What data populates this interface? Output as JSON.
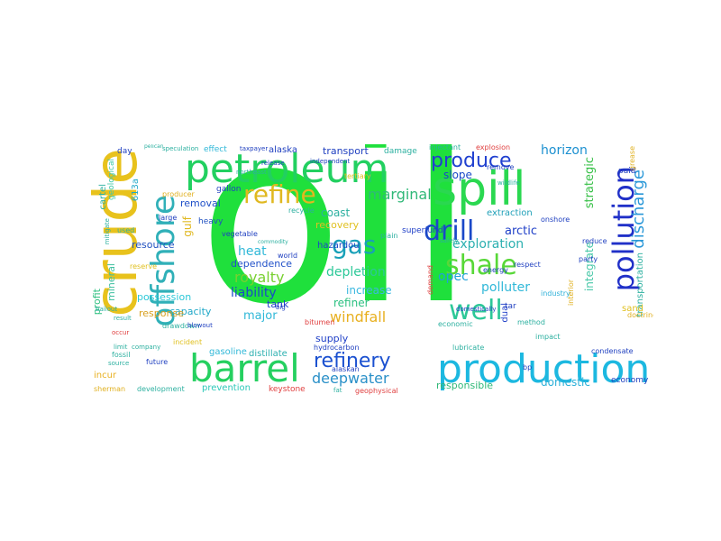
{
  "words": [
    {
      "text": "oil",
      "color": "#1fe03c"
    },
    {
      "text": "crude",
      "color": "#e8c21c"
    },
    {
      "text": "petroleum",
      "color": "#22d060"
    },
    {
      "text": "spill",
      "color": "#2ad850"
    },
    {
      "text": "barrel",
      "color": "#25d060"
    },
    {
      "text": "production",
      "color": "#1cb8e0"
    },
    {
      "text": "offshore",
      "color": "#30b0b8"
    },
    {
      "text": "pollution",
      "color": "#2030c8"
    },
    {
      "text": "shale",
      "color": "#58d838"
    },
    {
      "text": "drill",
      "color": "#1a48c8"
    },
    {
      "text": "well",
      "color": "#2cc898"
    },
    {
      "text": "refine",
      "color": "#e0b820"
    },
    {
      "text": "gas",
      "color": "#18a0b8"
    },
    {
      "text": "produce",
      "color": "#2040d0"
    },
    {
      "text": "refinery",
      "color": "#1a50d0"
    },
    {
      "text": "discharge",
      "color": "#2a98d8"
    },
    {
      "text": "marginal",
      "color": "#30b878"
    },
    {
      "text": "royalty",
      "color": "#78d030"
    },
    {
      "text": "depletion",
      "color": "#2cc898"
    },
    {
      "text": "exploration",
      "color": "#2cb0b0"
    },
    {
      "text": "deepwater",
      "color": "#2a90c8"
    },
    {
      "text": "windfall",
      "color": "#e8b020"
    },
    {
      "text": "liability",
      "color": "#1a48c8"
    },
    {
      "text": "heat",
      "color": "#30b8d8"
    },
    {
      "text": "dependence",
      "color": "#2050c8"
    },
    {
      "text": "major",
      "color": "#30b8d8"
    },
    {
      "text": "opec",
      "color": "#20a0d8"
    },
    {
      "text": "polluter",
      "color": "#30b8d8"
    },
    {
      "text": "strategic",
      "color": "#38c048"
    },
    {
      "text": "integrate",
      "color": "#48c8a8"
    },
    {
      "text": "horizon",
      "color": "#1c90d0"
    },
    {
      "text": "slope",
      "color": "#1a48c8"
    },
    {
      "text": "arctic",
      "color": "#2040c8"
    },
    {
      "text": "extraction",
      "color": "#20a0b8"
    },
    {
      "text": "increase",
      "color": "#3ab8e0"
    },
    {
      "text": "refiner",
      "color": "#2ac080"
    },
    {
      "text": "coast",
      "color": "#2cb0a0"
    },
    {
      "text": "recovery",
      "color": "#e0c020"
    },
    {
      "text": "removal",
      "color": "#2050c8"
    },
    {
      "text": "resource",
      "color": "#2050c0"
    },
    {
      "text": "gulf",
      "color": "#e0b820"
    },
    {
      "text": "capacity",
      "color": "#20a8c8"
    },
    {
      "text": "response",
      "color": "#d8a020"
    },
    {
      "text": "profit",
      "color": "#30c080"
    },
    {
      "text": "mineral",
      "color": "#40c0a0"
    },
    {
      "text": "possession",
      "color": "#2cc8d8"
    },
    {
      "text": "supply",
      "color": "#2040c8"
    },
    {
      "text": "responsible",
      "color": "#30b878"
    },
    {
      "text": "domestic",
      "color": "#2cb0d8"
    },
    {
      "text": "transport",
      "color": "#2040c0"
    },
    {
      "text": "alaska",
      "color": "#2040c0"
    },
    {
      "text": "hazardou",
      "color": "#1a48c8"
    },
    {
      "text": "tank",
      "color": "#2040c8"
    },
    {
      "text": "prevention",
      "color": "#2cc8b8"
    },
    {
      "text": "distillate",
      "color": "#2cb0b0"
    },
    {
      "text": "gasoline",
      "color": "#30b8d8"
    },
    {
      "text": "incur",
      "color": "#e8b020"
    },
    {
      "text": "transportation",
      "color": "#2cb0a0"
    },
    {
      "text": "sand",
      "color": "#e0c020"
    },
    {
      "text": "paid",
      "color": "#2040c0"
    },
    {
      "text": "economy",
      "color": "#2040c0"
    },
    {
      "text": "keystone",
      "color": "#e04040"
    },
    {
      "text": "cartel",
      "color": "#2cb0a0"
    },
    {
      "text": "geological",
      "color": "#40c8a8"
    },
    {
      "text": "613a",
      "color": "#20a8c8"
    },
    {
      "text": "heavy",
      "color": "#2050c0"
    },
    {
      "text": "superfund",
      "color": "#2040c8"
    },
    {
      "text": "dual",
      "color": "#2040c8"
    },
    {
      "text": "tar",
      "color": "#2040c0"
    },
    {
      "text": "damage",
      "color": "#2cb0a0"
    },
    {
      "text": "effect",
      "color": "#30b8d8"
    },
    {
      "text": "day",
      "color": "#2040c0"
    },
    {
      "text": "gallon",
      "color": "#2040c0"
    },
    {
      "text": "hydrocarbon",
      "color": "#2040c0"
    },
    {
      "text": "alaskan",
      "color": "#2040c0"
    },
    {
      "text": "geophysical",
      "color": "#e04040"
    },
    {
      "text": "drawdown",
      "color": "#2cb0a0"
    },
    {
      "text": "future",
      "color": "#2040c0"
    },
    {
      "text": "fossil",
      "color": "#2cb0a0"
    },
    {
      "text": "development",
      "color": "#2cb0a0"
    },
    {
      "text": "sherman",
      "color": "#e0b020"
    },
    {
      "text": "incident",
      "color": "#e0c020"
    },
    {
      "text": "economic",
      "color": "#2cb0a0"
    },
    {
      "text": "method",
      "color": "#2cb0a0"
    },
    {
      "text": "industry",
      "color": "#2cb0d8"
    },
    {
      "text": "party",
      "color": "#2040c0"
    },
    {
      "text": "reduce",
      "color": "#2040c0"
    },
    {
      "text": "condensate",
      "color": "#2040c0"
    },
    {
      "text": "doctrine",
      "color": "#e0b020"
    },
    {
      "text": "bp",
      "color": "#2040c0"
    },
    {
      "text": "interior",
      "color": "#e0b020"
    },
    {
      "text": "respect",
      "color": "#2040c0"
    },
    {
      "text": "demand",
      "color": "#e04040"
    },
    {
      "text": "energy",
      "color": "#2040c0"
    },
    {
      "text": "impact",
      "color": "#2cb0a0"
    },
    {
      "text": "onshore",
      "color": "#2040c0"
    },
    {
      "text": "injectant",
      "color": "#2cb0a0"
    },
    {
      "text": "explosion",
      "color": "#e04040"
    },
    {
      "text": "remove",
      "color": "#2040c0"
    },
    {
      "text": "producer",
      "color": "#e0b020"
    },
    {
      "text": "large",
      "color": "#2040c0"
    },
    {
      "text": "used",
      "color": "#2cb0a0"
    },
    {
      "text": "mitigate",
      "color": "#2cb0a0"
    },
    {
      "text": "reserve",
      "color": "#e0c020"
    },
    {
      "text": "vegetable",
      "color": "#2040c0"
    },
    {
      "text": "world",
      "color": "#2040c0"
    },
    {
      "text": "recycle",
      "color": "#2cb0a0"
    },
    {
      "text": "tertiary",
      "color": "#e0c020"
    },
    {
      "text": "northeast",
      "color": "#2cb0a0"
    },
    {
      "text": "lubricate",
      "color": "#2cb0a0"
    },
    {
      "text": "bitumen",
      "color": "#e04040"
    },
    {
      "text": "grease",
      "color": "#e0b020"
    },
    {
      "text": "plain",
      "color": "#2cb0a0"
    },
    {
      "text": "speculation",
      "color": "#2cb0a0"
    },
    {
      "text": "taxpayer",
      "color": "#2040c0"
    },
    {
      "text": "release",
      "color": "#2040c0"
    },
    {
      "text": "independent",
      "color": "#2040c0"
    },
    {
      "text": "limit",
      "color": "#2cb0a0"
    },
    {
      "text": "source",
      "color": "#2cb0a0"
    },
    {
      "text": "result",
      "color": "#2cb0a0"
    },
    {
      "text": "commodity",
      "color": "#2cb0a0"
    },
    {
      "text": "fat",
      "color": "#2cb0a0"
    },
    {
      "text": "occur",
      "color": "#e04040"
    },
    {
      "text": "company",
      "color": "#2cb0a0"
    },
    {
      "text": "blowout",
      "color": "#2040c0"
    },
    {
      "text": "bailout",
      "color": "#2cb0a0"
    },
    {
      "text": "safely",
      "color": "#2cb0a0"
    },
    {
      "text": "big",
      "color": "#2040c0"
    },
    {
      "text": "domestically",
      "color": "#2040c0"
    },
    {
      "text": "pelican",
      "color": "#2cb0a0"
    },
    {
      "text": "wildlife",
      "color": "#2cb0a0"
    }
  ]
}
